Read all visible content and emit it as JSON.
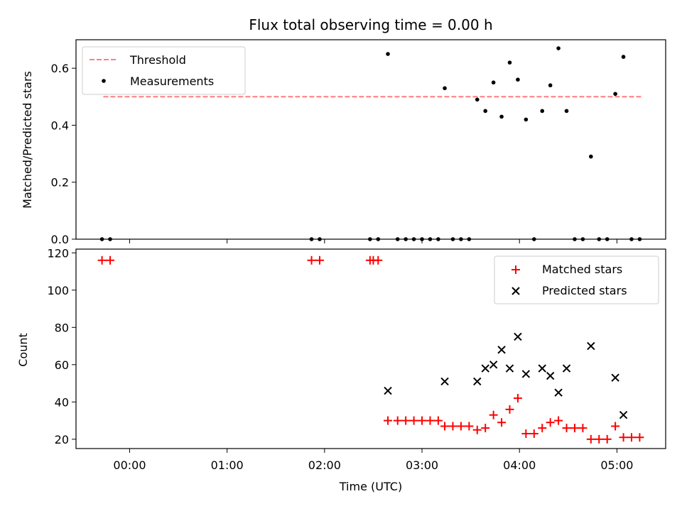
{
  "chart_data": [
    {
      "type": "scatter",
      "title": "Flux total observing time = 0.00 h",
      "xlabel": "",
      "ylabel": "Matched/Predicted stars",
      "ylim": [
        0,
        0.7
      ],
      "xlim_hours": [
        -0.55,
        5.5
      ],
      "y_ticks": [
        "0.0",
        "0.2",
        "0.4",
        "0.6"
      ],
      "legend_position": "top-left",
      "threshold": {
        "name": "Threshold",
        "value": 0.5,
        "x_start": -0.27,
        "x_end": 5.25,
        "color": "#ff7f7f"
      },
      "series": [
        {
          "name": "Measurements",
          "color": "#000000",
          "points": [
            [
              "23:43",
              0
            ],
            [
              "23:48",
              0
            ],
            [
              "01:52",
              0
            ],
            [
              "01:57",
              0
            ],
            [
              "02:28",
              0
            ],
            [
              "02:33",
              0
            ],
            [
              "02:39",
              0.65
            ],
            [
              "02:45",
              0
            ],
            [
              "02:50",
              0
            ],
            [
              "02:55",
              0
            ],
            [
              "03:00",
              0
            ],
            [
              "03:05",
              0
            ],
            [
              "03:10",
              0
            ],
            [
              "03:14",
              0.53
            ],
            [
              "03:19",
              0
            ],
            [
              "03:24",
              0
            ],
            [
              "03:29",
              0
            ],
            [
              "03:34",
              0.49
            ],
            [
              "03:39",
              0.45
            ],
            [
              "03:44",
              0.55
            ],
            [
              "03:49",
              0.43
            ],
            [
              "03:54",
              0.62
            ],
            [
              "03:59",
              0.56
            ],
            [
              "04:04",
              0.42
            ],
            [
              "04:09",
              0
            ],
            [
              "04:14",
              0.45
            ],
            [
              "04:19",
              0.54
            ],
            [
              "04:24",
              0.67
            ],
            [
              "04:29",
              0.45
            ],
            [
              "04:34",
              0
            ],
            [
              "04:39",
              0
            ],
            [
              "04:44",
              0.29
            ],
            [
              "04:49",
              0
            ],
            [
              "04:54",
              0
            ],
            [
              "04:59",
              0.51
            ],
            [
              "05:04",
              0.64
            ],
            [
              "05:09",
              0
            ],
            [
              "05:14",
              0
            ]
          ]
        }
      ]
    },
    {
      "type": "scatter",
      "title": "",
      "xlabel": "Time (UTC)",
      "ylabel": "Count",
      "ylim": [
        15,
        122
      ],
      "xlim_hours": [
        -0.55,
        5.5
      ],
      "y_ticks": [
        "20",
        "40",
        "60",
        "80",
        "100",
        "120"
      ],
      "x_ticks": [
        "00:00",
        "01:00",
        "02:00",
        "03:00",
        "04:00",
        "05:00"
      ],
      "legend_position": "top-right",
      "series": [
        {
          "name": "Matched stars",
          "marker": "plus",
          "color": "#ff0000",
          "points": [
            [
              "23:43",
              116
            ],
            [
              "23:48",
              116
            ],
            [
              "01:52",
              116
            ],
            [
              "01:57",
              116
            ],
            [
              "02:28",
              116
            ],
            [
              "02:30",
              116
            ],
            [
              "02:33",
              116
            ],
            [
              "02:39",
              30
            ],
            [
              "02:45",
              30
            ],
            [
              "02:50",
              30
            ],
            [
              "02:55",
              30
            ],
            [
              "03:00",
              30
            ],
            [
              "03:05",
              30
            ],
            [
              "03:10",
              30
            ],
            [
              "03:14",
              27
            ],
            [
              "03:19",
              27
            ],
            [
              "03:24",
              27
            ],
            [
              "03:29",
              27
            ],
            [
              "03:34",
              25
            ],
            [
              "03:39",
              26
            ],
            [
              "03:44",
              33
            ],
            [
              "03:49",
              29
            ],
            [
              "03:54",
              36
            ],
            [
              "03:59",
              42
            ],
            [
              "04:04",
              23
            ],
            [
              "04:09",
              23
            ],
            [
              "04:14",
              26
            ],
            [
              "04:19",
              29
            ],
            [
              "04:24",
              30
            ],
            [
              "04:29",
              26
            ],
            [
              "04:34",
              26
            ],
            [
              "04:39",
              26
            ],
            [
              "04:44",
              20
            ],
            [
              "04:49",
              20
            ],
            [
              "04:54",
              20
            ],
            [
              "04:59",
              27
            ],
            [
              "05:04",
              21
            ],
            [
              "05:09",
              21
            ],
            [
              "05:14",
              21
            ]
          ]
        },
        {
          "name": "Predicted stars",
          "marker": "x",
          "color": "#000000",
          "points": [
            [
              "02:39",
              46
            ],
            [
              "03:14",
              51
            ],
            [
              "03:34",
              51
            ],
            [
              "03:39",
              58
            ],
            [
              "03:44",
              60
            ],
            [
              "03:49",
              68
            ],
            [
              "03:54",
              58
            ],
            [
              "03:59",
              75
            ],
            [
              "04:04",
              55
            ],
            [
              "04:14",
              58
            ],
            [
              "04:19",
              54
            ],
            [
              "04:24",
              45
            ],
            [
              "04:29",
              58
            ],
            [
              "04:44",
              70
            ],
            [
              "04:59",
              53
            ],
            [
              "05:04",
              33
            ]
          ]
        }
      ]
    }
  ]
}
